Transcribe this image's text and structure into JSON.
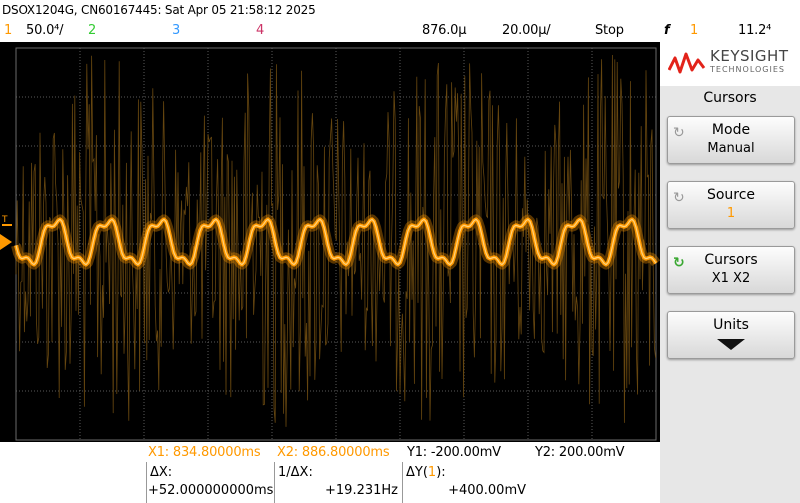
{
  "title": "DSOX1204G, CN60167445: Sat Apr 05 21:58:12 2025",
  "status": {
    "ch1_num": "1",
    "ch1_scale": "50.0⁴/",
    "ch2_num": "2",
    "ch3_num": "3",
    "ch4_num": "4",
    "delay": "876.0µ",
    "timebase": "20.00µ/",
    "run_state": "Stop",
    "trigger_symbol": "f",
    "trigger_source": "1",
    "trigger_level": "11.2⁴"
  },
  "sidebar": {
    "brand_name": "KEYSIGHT",
    "brand_sub": "TECHNOLOGIES",
    "menu_title": "Cursors",
    "softkeys": [
      {
        "label": "Mode",
        "value": "Manual"
      },
      {
        "label": "Source",
        "value": "1"
      },
      {
        "label": "Cursors",
        "value": "X1 X2"
      },
      {
        "label": "Units",
        "value": ""
      }
    ]
  },
  "cursors": {
    "x1": "X1:  834.80000ms",
    "x2": "X2:  886.80000ms",
    "y1": "Y1:  -200.00mV",
    "y2": "Y2:  200.00mV"
  },
  "deltas": {
    "dx_label": "ΔX:",
    "dx_value": "+52.000000000ms",
    "inv_dx_label": "1/ΔX:",
    "inv_dx_value": "+19.231Hz",
    "dy_label_prefix": "ΔY(",
    "dy_label_channel": "1",
    "dy_label_suffix": "):",
    "dy_value": "+400.00mV"
  },
  "colors": {
    "ch1": "#ff9900",
    "ch2": "#33cc33",
    "ch3": "#3399ff",
    "ch4": "#cc3366",
    "noise": "#6b4a10",
    "grid": "#555555",
    "brand": "#e2231a",
    "source_value": "#ff9900"
  },
  "icons": [
    "rotate-knob-icon",
    "rotate-knob-active-icon",
    "down-arrow-icon",
    "trigger-edge-icon",
    "keysight-logo-icon"
  ]
}
